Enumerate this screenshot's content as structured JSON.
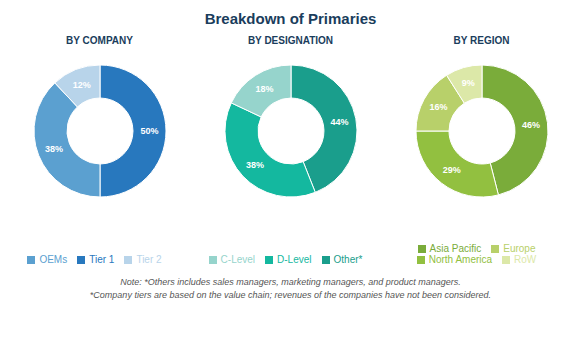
{
  "title": "Breakdown of Primaries",
  "chart_data": [
    {
      "type": "donut",
      "title": "BY COMPANY",
      "categories": [
        "Tier 1",
        "OEMs",
        "Tier 2"
      ],
      "values": [
        50,
        38,
        12
      ],
      "value_labels": [
        "50%",
        "38%",
        "12%"
      ],
      "colors": [
        "#2878be",
        "#5ba0d0",
        "#b8d4ea"
      ],
      "data_labels": true,
      "legend": "bottom"
    },
    {
      "type": "donut",
      "title": "BY DESIGNATION",
      "categories": [
        "Other*",
        "D-Level",
        "C-Level"
      ],
      "values": [
        44,
        38,
        18
      ],
      "value_labels": [
        "44%",
        "38%",
        "18%"
      ],
      "colors": [
        "#1a9e8c",
        "#14b89f",
        "#96d4cc"
      ],
      "data_labels": true,
      "legend": "bottom"
    },
    {
      "type": "donut",
      "title": "BY REGION",
      "categories": [
        "Asia Pacific",
        "North America",
        "Europe",
        "RoW"
      ],
      "values": [
        46,
        29,
        16,
        9
      ],
      "value_labels": [
        "46%",
        "29%",
        "16%",
        "9%"
      ],
      "colors": [
        "#7aac3a",
        "#92c040",
        "#b8d06a",
        "#dce8a8"
      ],
      "data_labels": true,
      "legend": "bottom"
    }
  ],
  "annotations": [
    "Note: *Others includes sales managers, marketing managers, and product managers.",
    "*Company tiers are based on the value chain; revenues of the companies have not been considered."
  ]
}
